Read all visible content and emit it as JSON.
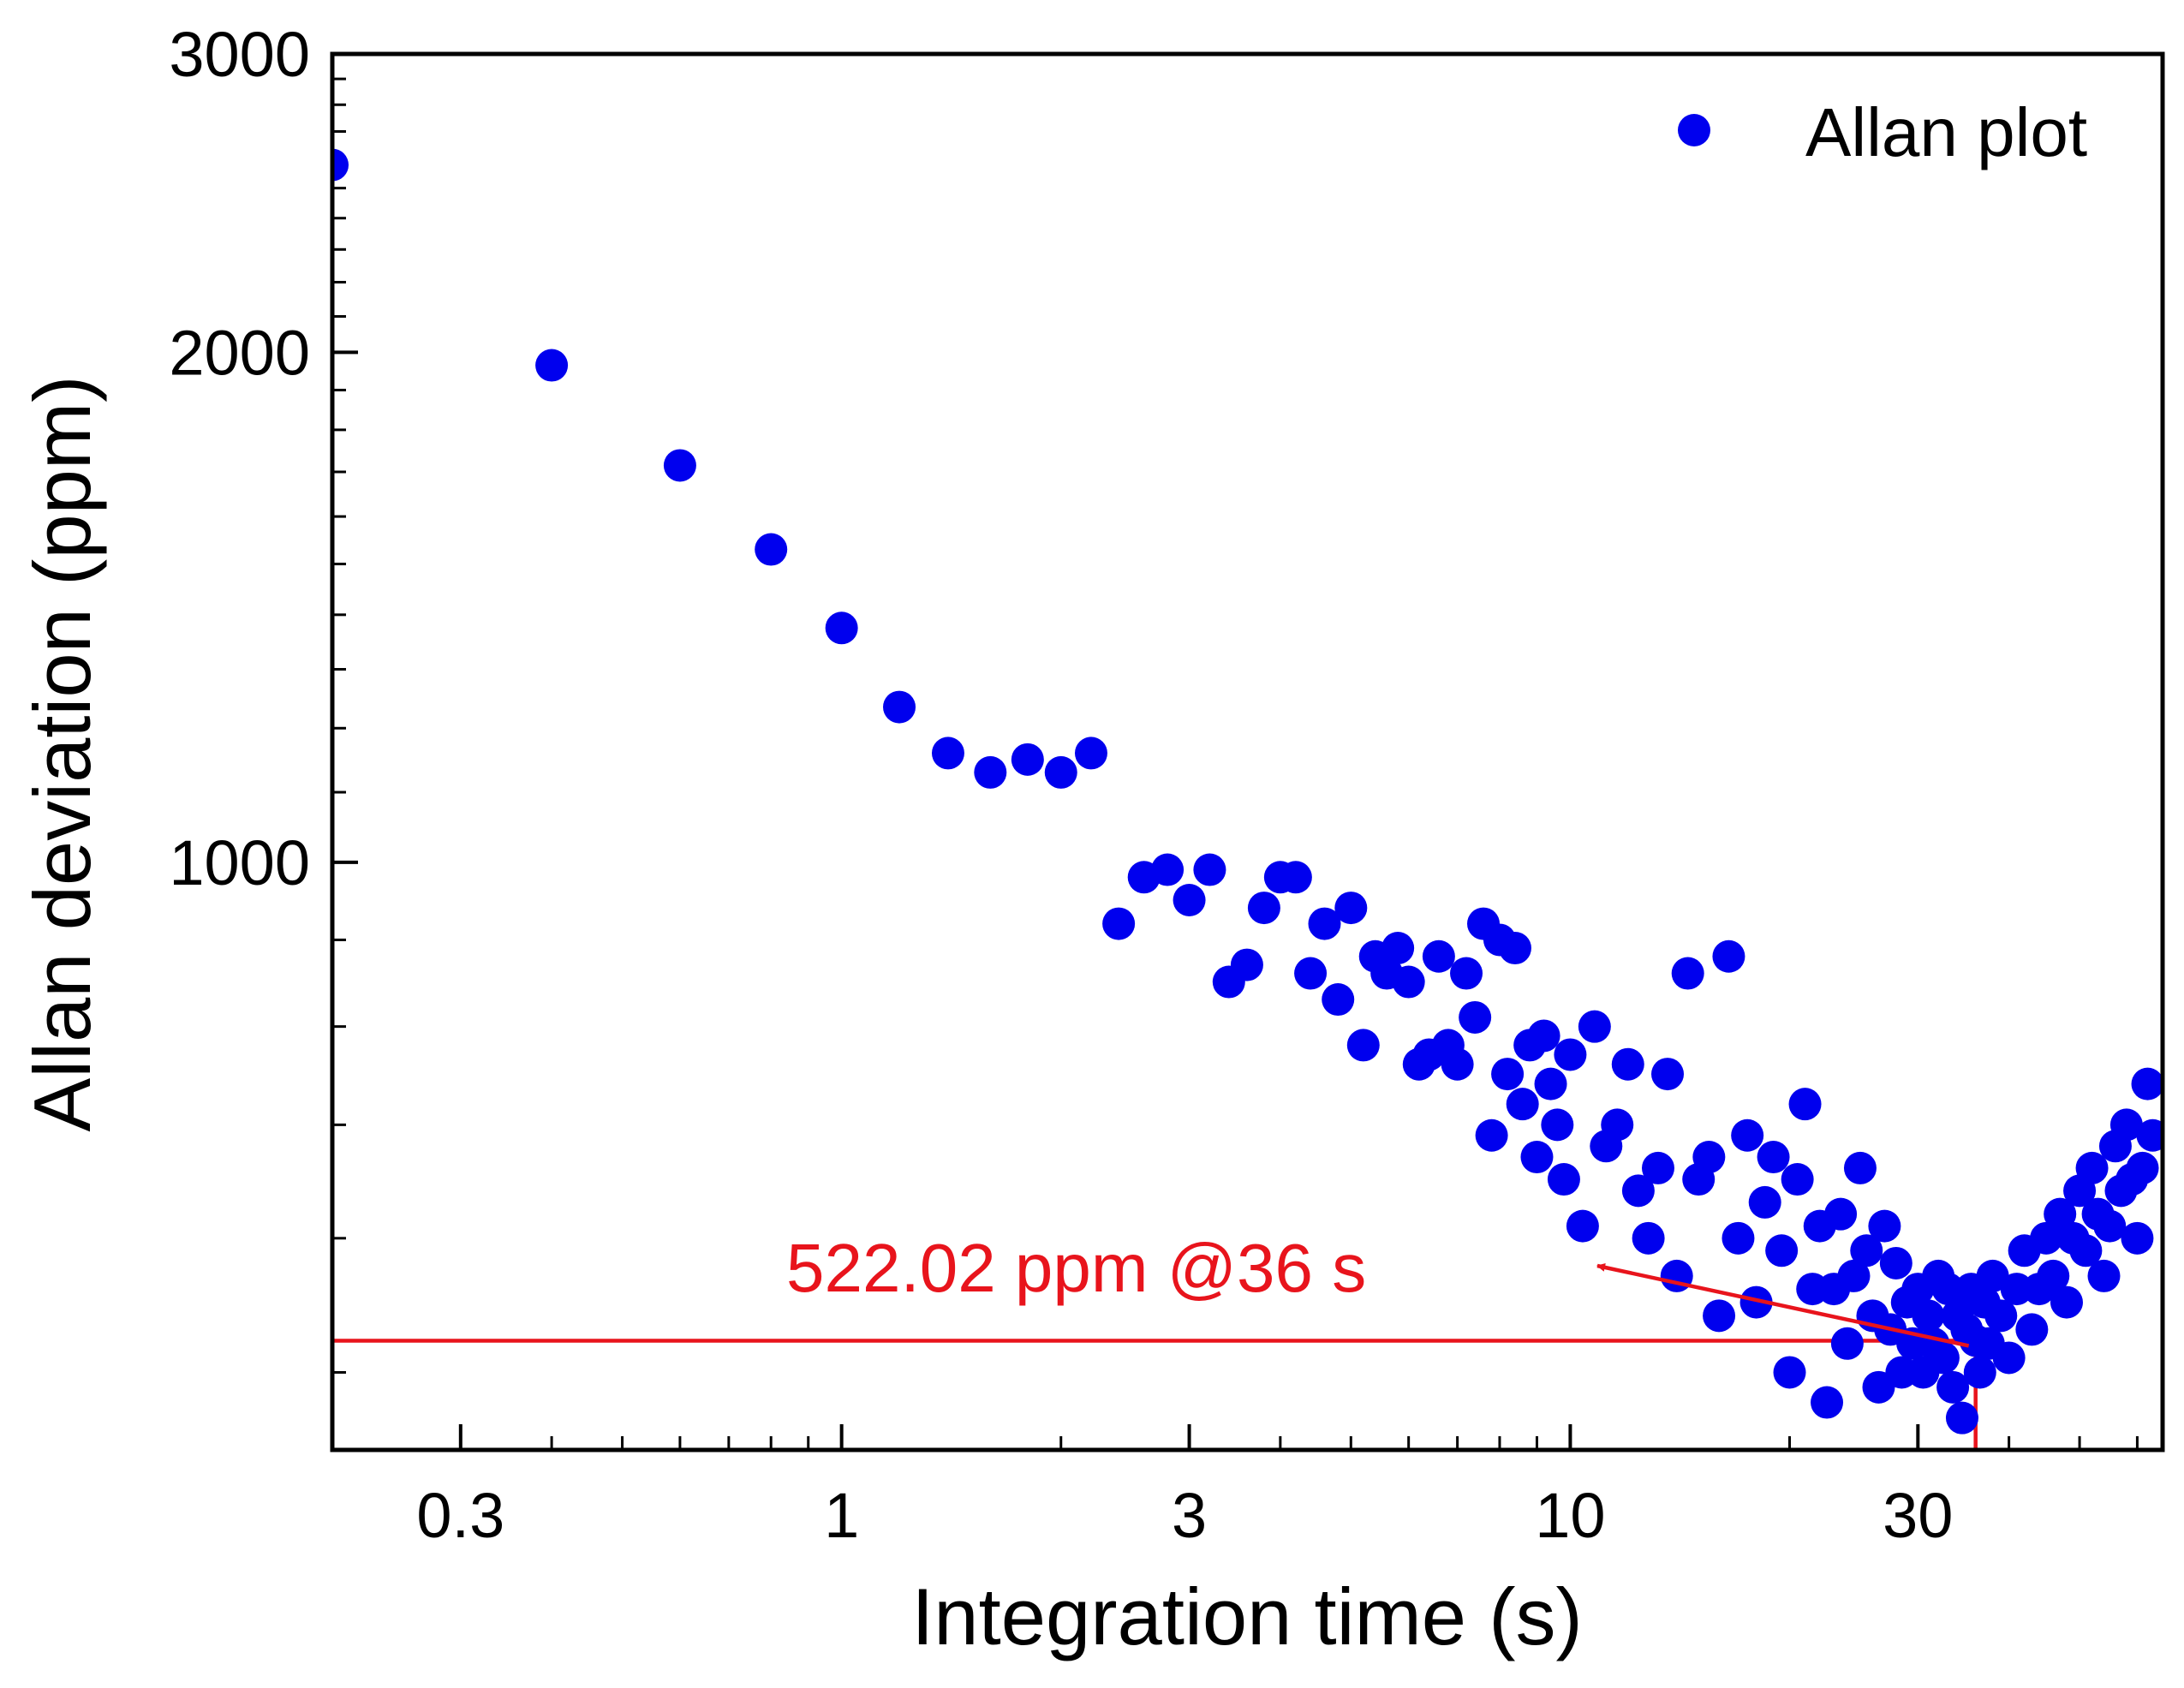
{
  "chart_data": {
    "type": "scatter",
    "title": "",
    "xlabel": "Integration time (s)",
    "ylabel": "Allan deviation (ppm)",
    "xscale": "log",
    "yscale": "log",
    "xlim": [
      0.2,
      65
    ],
    "ylim": [
      450,
      3000
    ],
    "grid": false,
    "legend_position": "top-right",
    "x_ticks": [
      {
        "value": 0.3,
        "label": "0.3"
      },
      {
        "value": 1,
        "label": "1"
      },
      {
        "value": 3,
        "label": "3"
      },
      {
        "value": 10,
        "label": "10"
      },
      {
        "value": 30,
        "label": "30"
      }
    ],
    "y_ticks": [
      {
        "value": 1000,
        "label": "1000"
      },
      {
        "value": 2000,
        "label": "2000"
      },
      {
        "value": 3000,
        "label": "3000"
      }
    ],
    "series": [
      {
        "name": "Allan plot",
        "color": "#0000ee",
        "points": [
          [
            0.2,
            2580
          ],
          [
            0.4,
            1965
          ],
          [
            0.6,
            1715
          ],
          [
            0.8,
            1530
          ],
          [
            1.0,
            1375
          ],
          [
            1.2,
            1235
          ],
          [
            1.4,
            1160
          ],
          [
            1.6,
            1130
          ],
          [
            1.8,
            1150
          ],
          [
            2.0,
            1130
          ],
          [
            2.2,
            1160
          ],
          [
            2.4,
            920
          ],
          [
            2.6,
            980
          ],
          [
            2.8,
            990
          ],
          [
            3.0,
            950
          ],
          [
            3.2,
            990
          ],
          [
            3.4,
            850
          ],
          [
            3.6,
            870
          ],
          [
            3.8,
            940
          ],
          [
            4.0,
            980
          ],
          [
            4.2,
            980
          ],
          [
            4.4,
            860
          ],
          [
            4.6,
            920
          ],
          [
            4.8,
            830
          ],
          [
            5.0,
            940
          ],
          [
            5.2,
            780
          ],
          [
            5.4,
            880
          ],
          [
            5.6,
            860
          ],
          [
            5.8,
            890
          ],
          [
            6.0,
            850
          ],
          [
            6.2,
            760
          ],
          [
            6.4,
            770
          ],
          [
            6.6,
            880
          ],
          [
            6.8,
            780
          ],
          [
            7.0,
            760
          ],
          [
            7.2,
            860
          ],
          [
            7.4,
            810
          ],
          [
            7.6,
            920
          ],
          [
            7.8,
            690
          ],
          [
            8.0,
            900
          ],
          [
            8.2,
            750
          ],
          [
            8.4,
            890
          ],
          [
            8.6,
            720
          ],
          [
            8.8,
            780
          ],
          [
            9.0,
            670
          ],
          [
            9.2,
            790
          ],
          [
            9.4,
            740
          ],
          [
            9.6,
            700
          ],
          [
            9.8,
            650
          ],
          [
            10.0,
            770
          ],
          [
            10.4,
            610
          ],
          [
            10.8,
            800
          ],
          [
            11.2,
            680
          ],
          [
            11.6,
            700
          ],
          [
            12.0,
            760
          ],
          [
            12.4,
            640
          ],
          [
            12.8,
            600
          ],
          [
            13.2,
            660
          ],
          [
            13.6,
            750
          ],
          [
            14.0,
            570
          ],
          [
            14.5,
            860
          ],
          [
            15.0,
            650
          ],
          [
            15.5,
            670
          ],
          [
            16.0,
            540
          ],
          [
            16.5,
            880
          ],
          [
            17.0,
            600
          ],
          [
            17.5,
            690
          ],
          [
            18.0,
            550
          ],
          [
            18.5,
            630
          ],
          [
            19.0,
            670
          ],
          [
            19.5,
            590
          ],
          [
            20.0,
            500
          ],
          [
            20.5,
            650
          ],
          [
            21.0,
            720
          ],
          [
            21.5,
            560
          ],
          [
            22.0,
            610
          ],
          [
            22.5,
            480
          ],
          [
            23.0,
            560
          ],
          [
            23.5,
            620
          ],
          [
            24.0,
            520
          ],
          [
            24.5,
            570
          ],
          [
            25.0,
            660
          ],
          [
            25.5,
            590
          ],
          [
            26.0,
            540
          ],
          [
            26.5,
            490
          ],
          [
            27.0,
            610
          ],
          [
            27.5,
            530
          ],
          [
            28.0,
            580
          ],
          [
            28.5,
            500
          ],
          [
            29.0,
            550
          ],
          [
            29.5,
            520
          ],
          [
            30.0,
            560
          ],
          [
            30.5,
            500
          ],
          [
            31.0,
            540
          ],
          [
            31.5,
            520
          ],
          [
            32.0,
            570
          ],
          [
            32.5,
            510
          ],
          [
            33.0,
            560
          ],
          [
            33.5,
            490
          ],
          [
            34.0,
            540
          ],
          [
            34.5,
            470
          ],
          [
            35.0,
            530
          ],
          [
            35.5,
            560
          ],
          [
            36.0,
            522
          ],
          [
            36.5,
            500
          ],
          [
            37.0,
            550
          ],
          [
            37.5,
            520
          ],
          [
            38.0,
            570
          ],
          [
            39.0,
            540
          ],
          [
            40.0,
            510
          ],
          [
            41.0,
            560
          ],
          [
            42.0,
            590
          ],
          [
            43.0,
            530
          ],
          [
            44.0,
            560
          ],
          [
            45.0,
            600
          ],
          [
            46.0,
            570
          ],
          [
            47.0,
            620
          ],
          [
            48.0,
            550
          ],
          [
            49.0,
            600
          ],
          [
            50.0,
            640
          ],
          [
            51.0,
            590
          ],
          [
            52.0,
            660
          ],
          [
            53.0,
            620
          ],
          [
            54.0,
            570
          ],
          [
            55.0,
            610
          ],
          [
            56.0,
            680
          ],
          [
            57.0,
            640
          ],
          [
            58.0,
            700
          ],
          [
            59.0,
            650
          ],
          [
            60.0,
            600
          ],
          [
            61.0,
            660
          ],
          [
            62.0,
            740
          ],
          [
            63.0,
            690
          ]
        ]
      }
    ],
    "reference_lines": [
      {
        "type": "horizontal",
        "y": 522.02
      },
      {
        "type": "vertical",
        "x": 36
      }
    ],
    "annotation": {
      "text": "522.02 ppm @36 s",
      "color": "#e8141c",
      "arrow_target": [
        36,
        522.02
      ]
    }
  }
}
